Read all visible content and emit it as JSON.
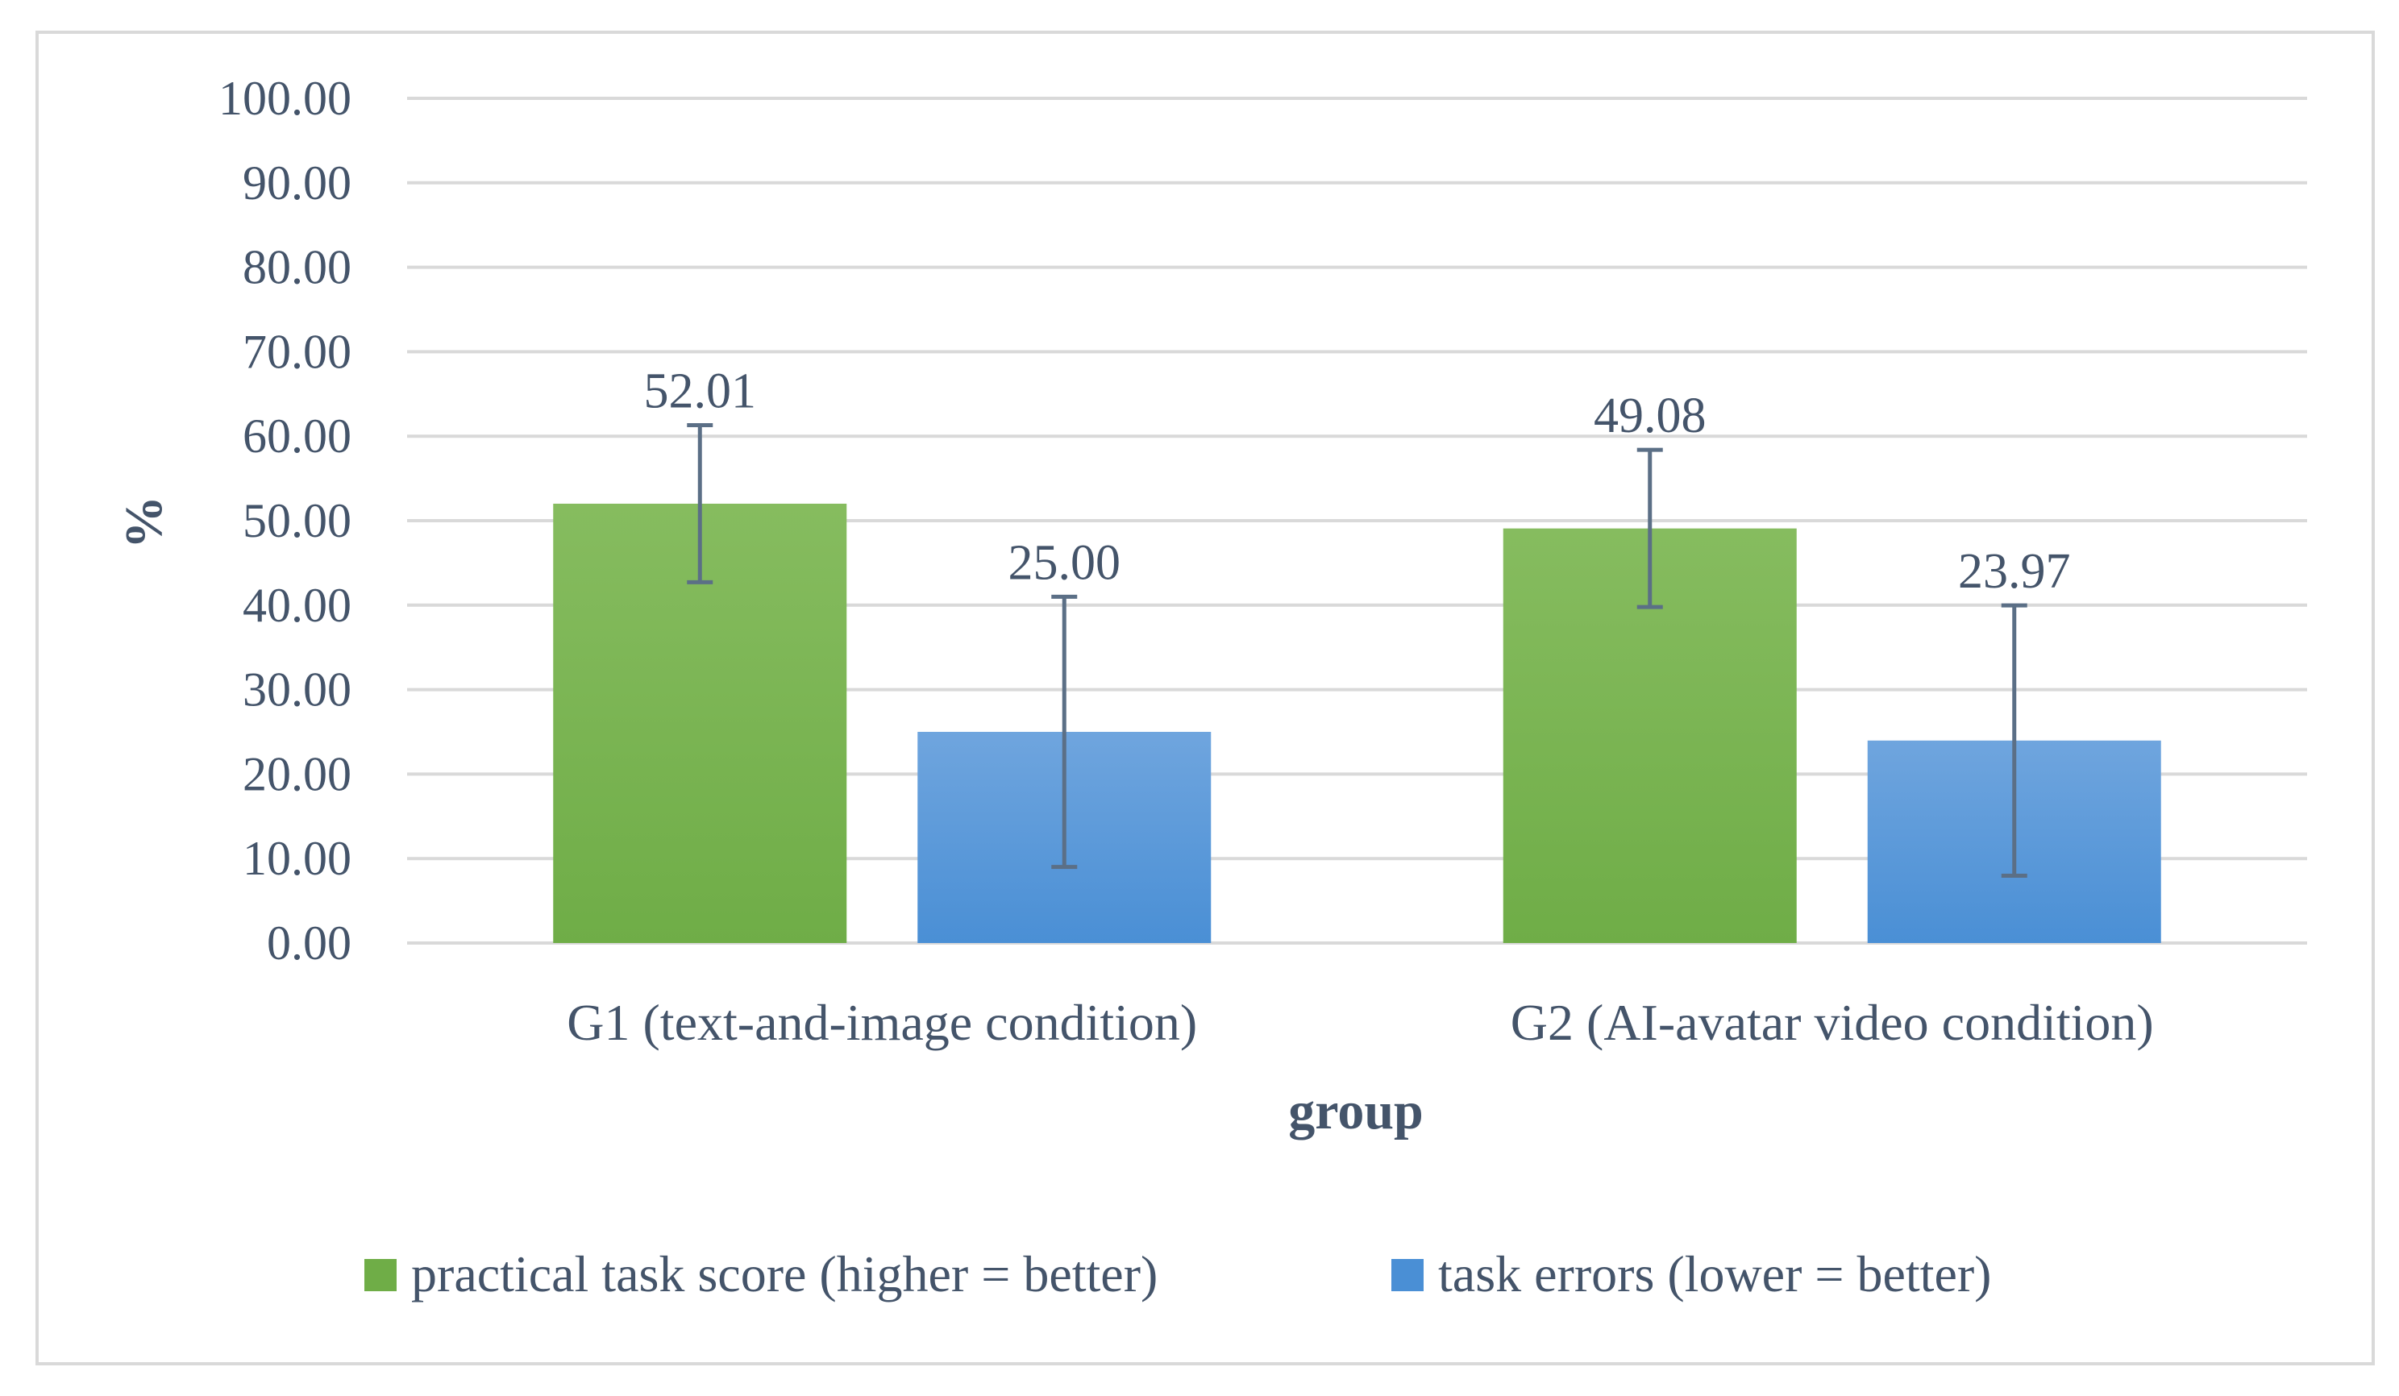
{
  "chart_data": {
    "type": "bar",
    "title": "",
    "xlabel": "group",
    "ylabel": "%",
    "ylim": [
      0,
      100
    ],
    "yticks": [
      "0.00",
      "10.00",
      "20.00",
      "30.00",
      "40.00",
      "50.00",
      "60.00",
      "70.00",
      "80.00",
      "90.00",
      "100.00"
    ],
    "grid": true,
    "legend_position": "bottom",
    "categories": [
      "G1 (text-and-image condition)",
      "G2 (AI-avatar video condition)"
    ],
    "series": [
      {
        "name": "practical task score (higher = better)",
        "color": "#6fad47",
        "color_top": "#86bc5f",
        "values": [
          52.01,
          49.08
        ],
        "labels": [
          "52.01",
          "49.08"
        ],
        "error": [
          9.3,
          9.3
        ]
      },
      {
        "name": "task errors (lower = better)",
        "color": "#4a8fd5",
        "color_top": "#6fa5de",
        "values": [
          25.0,
          23.97
        ],
        "labels": [
          "25.00",
          "23.97"
        ],
        "error": [
          16.0,
          16.0
        ]
      }
    ]
  }
}
